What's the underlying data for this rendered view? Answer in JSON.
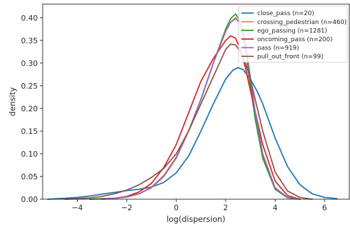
{
  "chart_data": {
    "type": "line",
    "title": "",
    "xlabel": "log(dispersion)",
    "ylabel": "density",
    "xlim": [
      -5.4,
      7.0
    ],
    "ylim": [
      0.0,
      0.43
    ],
    "x_ticks": [
      -4,
      -2,
      0,
      2,
      4,
      6
    ],
    "x_tick_labels": [
      "−4",
      "−2",
      "0",
      "2",
      "4",
      "6"
    ],
    "y_ticks": [
      0.0,
      0.05,
      0.1,
      0.15,
      0.2,
      0.25,
      0.3,
      0.35,
      0.4
    ],
    "y_tick_labels": [
      "0.00",
      "0.05",
      "0.10",
      "0.15",
      "0.20",
      "0.25",
      "0.30",
      "0.35",
      "0.40"
    ],
    "grid": false,
    "legend_position": "top-right",
    "series": [
      {
        "name": "close_pass (n=20)",
        "color": "#1f77b4",
        "x": [
          -5.2,
          -4.5,
          -4.0,
          -3.5,
          -3.0,
          -2.5,
          -2.0,
          -1.5,
          -1.0,
          -0.5,
          0.0,
          0.5,
          1.0,
          1.5,
          2.0,
          2.3,
          2.5,
          2.7,
          3.0,
          3.3,
          3.5,
          4.0,
          4.5,
          5.0,
          5.5,
          6.0,
          6.5
        ],
        "y": [
          0.0,
          0.002,
          0.004,
          0.007,
          0.011,
          0.015,
          0.019,
          0.022,
          0.027,
          0.037,
          0.058,
          0.095,
          0.15,
          0.21,
          0.265,
          0.285,
          0.29,
          0.286,
          0.265,
          0.235,
          0.21,
          0.135,
          0.072,
          0.032,
          0.012,
          0.004,
          0.001
        ]
      },
      {
        "name": "crossing_pedestrian (n=460)",
        "color": "#ff7f0e",
        "x": [
          -3.5,
          -3.0,
          -2.5,
          -2.0,
          -1.5,
          -1.0,
          -0.5,
          0.0,
          0.5,
          1.0,
          1.5,
          2.0,
          2.2,
          2.4,
          2.6,
          2.8,
          3.0,
          3.2,
          3.5,
          4.0,
          4.5,
          5.0
        ],
        "y": [
          0.0,
          0.001,
          0.002,
          0.005,
          0.012,
          0.025,
          0.05,
          0.09,
          0.15,
          0.22,
          0.3,
          0.37,
          0.39,
          0.4,
          0.385,
          0.33,
          0.25,
          0.18,
          0.095,
          0.025,
          0.004,
          0.0
        ]
      },
      {
        "name": "ego_passing (n=1281)",
        "color": "#2ca02c",
        "x": [
          -3.5,
          -3.0,
          -2.5,
          -2.0,
          -1.5,
          -1.0,
          -0.5,
          0.0,
          0.5,
          1.0,
          1.5,
          2.0,
          2.2,
          2.4,
          2.6,
          2.8,
          3.0,
          3.2,
          3.5,
          4.0,
          4.5,
          5.0
        ],
        "y": [
          0.0,
          0.001,
          0.002,
          0.005,
          0.012,
          0.026,
          0.052,
          0.092,
          0.15,
          0.22,
          0.3,
          0.375,
          0.398,
          0.408,
          0.392,
          0.335,
          0.25,
          0.175,
          0.09,
          0.022,
          0.003,
          0.0
        ]
      },
      {
        "name": "oncoming_pass (n=200)",
        "color": "#d62728",
        "x": [
          -3.0,
          -2.5,
          -2.0,
          -1.5,
          -1.0,
          -0.5,
          0.0,
          0.5,
          1.0,
          1.5,
          2.0,
          2.2,
          2.4,
          2.6,
          2.8,
          3.0,
          3.5,
          4.0,
          4.5,
          5.0
        ],
        "y": [
          0.0,
          0.002,
          0.006,
          0.016,
          0.035,
          0.07,
          0.12,
          0.19,
          0.26,
          0.31,
          0.35,
          0.36,
          0.355,
          0.33,
          0.29,
          0.24,
          0.12,
          0.04,
          0.008,
          0.0
        ]
      },
      {
        "name": "pass (n=919)",
        "color": "#9467bd",
        "x": [
          -3.0,
          -2.5,
          -2.0,
          -1.5,
          -1.0,
          -0.5,
          0.0,
          0.5,
          1.0,
          1.5,
          2.0,
          2.2,
          2.4,
          2.6,
          2.8,
          3.0,
          3.2,
          3.5,
          4.0,
          4.5,
          5.0
        ],
        "y": [
          0.0,
          0.002,
          0.005,
          0.012,
          0.026,
          0.052,
          0.092,
          0.15,
          0.22,
          0.3,
          0.37,
          0.39,
          0.398,
          0.39,
          0.345,
          0.27,
          0.19,
          0.1,
          0.025,
          0.004,
          0.0
        ]
      },
      {
        "name": "pull_out_front (n=99)",
        "color": "#8c564b",
        "x": [
          -4.5,
          -4.0,
          -3.5,
          -3.0,
          -2.5,
          -2.0,
          -1.5,
          -1.0,
          -0.5,
          0.0,
          0.5,
          1.0,
          1.5,
          2.0,
          2.2,
          2.4,
          2.6,
          2.8,
          3.0,
          3.5,
          4.0,
          4.5,
          5.0,
          5.5
        ],
        "y": [
          0.0,
          0.001,
          0.003,
          0.006,
          0.012,
          0.02,
          0.032,
          0.048,
          0.068,
          0.1,
          0.15,
          0.21,
          0.27,
          0.33,
          0.342,
          0.34,
          0.325,
          0.3,
          0.265,
          0.15,
          0.06,
          0.018,
          0.004,
          0.0
        ]
      }
    ]
  }
}
